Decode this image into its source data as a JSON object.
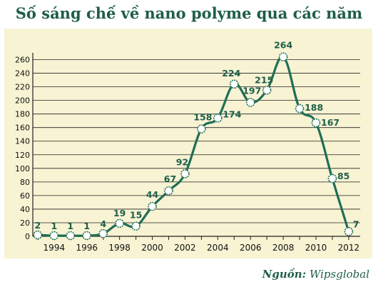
{
  "chart_data": {
    "type": "line",
    "title": "Số sáng chế về nano polyme  qua các năm",
    "source_label": "Nguồn:",
    "source_value": "Wipsglobal",
    "x": [
      1993,
      1994,
      1995,
      1996,
      1997,
      1998,
      1999,
      2000,
      2001,
      2002,
      2003,
      2004,
      2005,
      2006,
      2007,
      2008,
      2009,
      2010,
      2011,
      2012
    ],
    "values": [
      2,
      1,
      1,
      1,
      4,
      19,
      15,
      44,
      67,
      92,
      158,
      174,
      224,
      197,
      215,
      264,
      188,
      167,
      85,
      7
    ],
    "xticks": [
      1994,
      1996,
      1998,
      2000,
      2002,
      2004,
      2006,
      2008,
      2010,
      2012
    ],
    "yticks": [
      0,
      20,
      40,
      60,
      80,
      100,
      120,
      140,
      160,
      180,
      200,
      220,
      240,
      260
    ],
    "ylim": [
      0,
      270
    ],
    "xlim": [
      1992.7,
      2012.7
    ],
    "grid": true,
    "colors": {
      "line": "#1f6e55",
      "marker_fill": "#ffffff",
      "marker_stroke": "#1f6e55",
      "plot_background": "#f7f3d3",
      "grid": "#222222",
      "text": "#1f5e4a"
    }
  }
}
